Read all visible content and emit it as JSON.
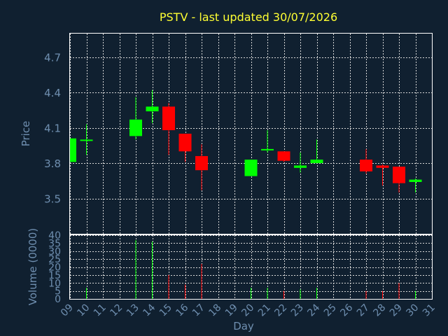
{
  "chart_data": {
    "type": "candlestick",
    "title": "PSTV - last updated 30/07/2026",
    "price_panel": {
      "ylabel": "Price",
      "ylim": [
        3.2,
        4.9
      ],
      "yticks": [
        3.5,
        3.8,
        4.1,
        4.4,
        4.7
      ],
      "ytick_labels": [
        "3.5",
        "3.8",
        "4.1",
        "4.4",
        "4.7"
      ]
    },
    "volume_panel": {
      "ylabel": "Volume (0000)",
      "ylim": [
        0,
        40
      ],
      "yticks": [
        0,
        5,
        10,
        15,
        20,
        25,
        30,
        35,
        40
      ],
      "ytick_labels": [
        "0",
        "5",
        "10",
        "15",
        "20",
        "25",
        "30",
        "35",
        "40"
      ]
    },
    "xlabel": "Day",
    "xlim": [
      9,
      31
    ],
    "x_ticks": [
      9,
      10,
      11,
      12,
      13,
      14,
      15,
      16,
      17,
      18,
      19,
      20,
      21,
      22,
      23,
      24,
      25,
      26,
      27,
      28,
      29,
      30,
      31
    ],
    "x_tick_labels": [
      "09",
      "10",
      "11",
      "12",
      "13",
      "14",
      "15",
      "16",
      "17",
      "18",
      "19",
      "20",
      "21",
      "22",
      "23",
      "24",
      "25",
      "26",
      "27",
      "28",
      "29",
      "30",
      "31"
    ],
    "colors": {
      "up": "#00ff00",
      "down": "#ff0000",
      "background": "#102030",
      "text": "#6f8fb0",
      "title": "#ffff33",
      "grid": "#d8d8d8"
    },
    "grid": true,
    "candles": [
      {
        "day": 9,
        "open": 3.81,
        "high": 4.01,
        "low": 3.81,
        "close": 4.01,
        "volume": 0
      },
      {
        "day": 10,
        "open": 4.0,
        "high": 4.13,
        "low": 3.87,
        "close": 4.0,
        "volume": 7
      },
      {
        "day": 13,
        "open": 4.03,
        "high": 4.36,
        "low": 4.0,
        "close": 4.17,
        "volume": 37
      },
      {
        "day": 14,
        "open": 4.24,
        "high": 4.42,
        "low": 4.14,
        "close": 4.28,
        "volume": 36
      },
      {
        "day": 15,
        "open": 4.28,
        "high": 4.31,
        "low": 3.87,
        "close": 4.08,
        "volume": 15
      },
      {
        "day": 16,
        "open": 4.05,
        "high": 4.05,
        "low": 3.81,
        "close": 3.9,
        "volume": 9
      },
      {
        "day": 17,
        "open": 3.86,
        "high": 3.96,
        "low": 3.57,
        "close": 3.74,
        "volume": 22
      },
      {
        "day": 20,
        "open": 3.69,
        "high": 3.83,
        "low": 3.69,
        "close": 3.83,
        "volume": 7
      },
      {
        "day": 21,
        "open": 3.91,
        "high": 4.08,
        "low": 3.89,
        "close": 3.92,
        "volume": 7
      },
      {
        "day": 22,
        "open": 3.9,
        "high": 3.9,
        "low": 3.81,
        "close": 3.82,
        "volume": 5
      },
      {
        "day": 23,
        "open": 3.76,
        "high": 3.89,
        "low": 3.72,
        "close": 3.78,
        "volume": 6
      },
      {
        "day": 24,
        "open": 3.8,
        "high": 4.0,
        "low": 3.8,
        "close": 3.83,
        "volume": 7
      },
      {
        "day": 27,
        "open": 3.83,
        "high": 3.92,
        "low": 3.71,
        "close": 3.73,
        "volume": 5
      },
      {
        "day": 28,
        "open": 3.78,
        "high": 3.79,
        "low": 3.61,
        "close": 3.76,
        "volume": 5
      },
      {
        "day": 29,
        "open": 3.77,
        "high": 3.77,
        "low": 3.55,
        "close": 3.63,
        "volume": 10
      },
      {
        "day": 30,
        "open": 3.64,
        "high": 3.67,
        "low": 3.55,
        "close": 3.66,
        "volume": 5
      }
    ]
  }
}
